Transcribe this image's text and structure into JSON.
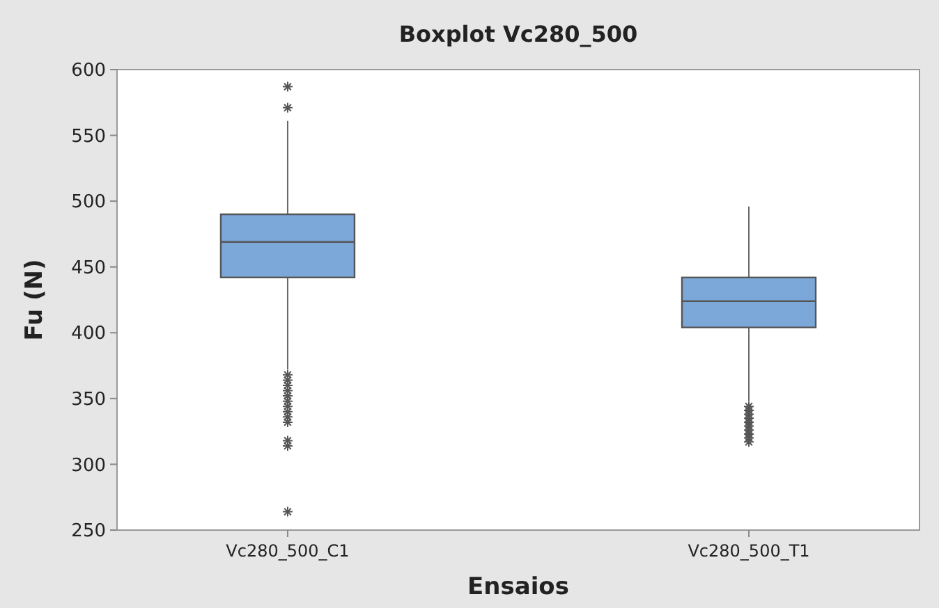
{
  "chart_data": {
    "type": "box",
    "title": "Boxplot Vc280_500",
    "xlabel": "Ensaios",
    "ylabel": "Fu (N)",
    "categories": [
      "Vc280_500_C1",
      "Vc280_500_T1"
    ],
    "color": "#7ba7d9",
    "boxes": [
      {
        "low": 372,
        "q1": 442,
        "median": 469,
        "q3": 490,
        "high": 561,
        "outliers": [
          587,
          571,
          368,
          364,
          360,
          356,
          352,
          348,
          344,
          340,
          336,
          332,
          318,
          314,
          264
        ]
      },
      {
        "low": 348,
        "q1": 404,
        "median": 424,
        "q3": 442,
        "high": 496,
        "outliers": [
          344,
          341,
          338,
          335,
          332,
          329,
          326,
          323,
          320,
          317
        ]
      }
    ],
    "ylim": [
      250,
      600
    ],
    "yticks": [
      250,
      300,
      350,
      400,
      450,
      500,
      550,
      600
    ],
    "grid": false
  }
}
